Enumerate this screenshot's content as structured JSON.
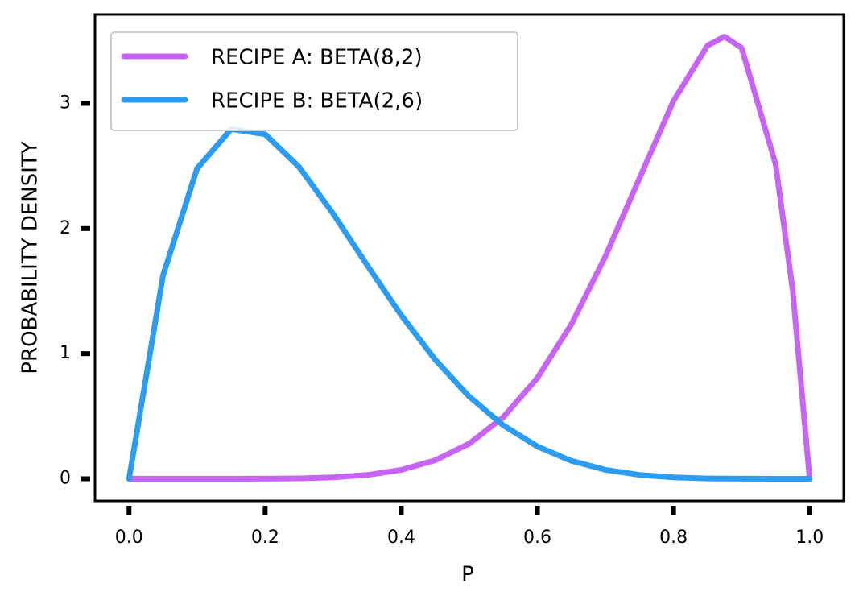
{
  "chart_data": {
    "type": "line",
    "x_label": "P",
    "y_label": "PROBABILITY DENSITY",
    "x": [
      0,
      0.05,
      0.1,
      0.15,
      0.2,
      0.25,
      0.3,
      0.35,
      0.4,
      0.45,
      0.5,
      0.55,
      0.6,
      0.65,
      0.7,
      0.75,
      0.8,
      0.85,
      0.875,
      0.9,
      0.95,
      0.975,
      1.0
    ],
    "series": [
      {
        "name": "RECIPE A: BETA(8,2)",
        "color": "#c864f5",
        "values": [
          0,
          0,
          0,
          0.0001,
          0.0007,
          0.0033,
          0.011,
          0.0301,
          0.0708,
          0.148,
          0.281,
          0.493,
          0.806,
          1.235,
          1.779,
          2.403,
          3.02,
          3.463,
          3.534,
          3.444,
          2.514,
          1.508,
          0
        ]
      },
      {
        "name": "RECIPE B: BETA(2,6)",
        "color": "#2b9cf2",
        "values": [
          0,
          1.625,
          2.48,
          2.795,
          2.753,
          2.492,
          2.118,
          1.706,
          1.306,
          0.951,
          0.656,
          0.426,
          0.258,
          0.143,
          0.0714,
          0.0308,
          0.0108,
          0.0027,
          0.0011,
          0.0004,
          0,
          0,
          0
        ]
      }
    ],
    "xlim": [
      -0.05,
      1.05
    ],
    "ylim": [
      -0.177,
      3.711
    ],
    "xticks": [
      {
        "value": 0,
        "label": "0.0"
      },
      0.2,
      0.4,
      0.6,
      0.8,
      {
        "value": 1,
        "label": "1.0"
      }
    ],
    "yticks": [
      0,
      1,
      2,
      3
    ],
    "legend": "upper left",
    "grid": false
  }
}
